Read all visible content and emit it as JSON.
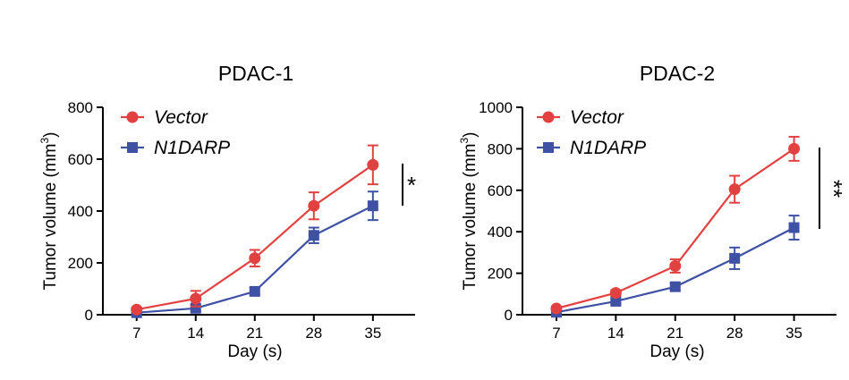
{
  "chart_data": [
    {
      "type": "line",
      "title": "PDAC-1",
      "xlabel": "Day (s)",
      "ylabel": "Tumor volume (mm",
      "ylabel_sup": "3",
      "ylabel_close": ")",
      "x": [
        7,
        14,
        21,
        28,
        35
      ],
      "xlim": [
        3,
        40
      ],
      "ylim": [
        0,
        800
      ],
      "yticks": [
        0,
        200,
        400,
        600,
        800
      ],
      "series": [
        {
          "name": "Vector",
          "color": "#e24141",
          "marker": "circle",
          "values": [
            20,
            62,
            218,
            420,
            578
          ],
          "errors": [
            8,
            30,
            32,
            52,
            75
          ]
        },
        {
          "name": "N1DARP",
          "color": "#3f51a4",
          "marker": "square",
          "values": [
            8,
            25,
            90,
            306,
            420
          ],
          "errors": [
            4,
            12,
            12,
            30,
            55
          ]
        }
      ],
      "significance": "*"
    },
    {
      "type": "line",
      "title": "PDAC-2",
      "xlabel": "Day (s)",
      "ylabel": "Tumor volume (mm",
      "ylabel_sup": "3",
      "ylabel_close": ")",
      "x": [
        7,
        14,
        21,
        28,
        35
      ],
      "xlim": [
        3,
        40
      ],
      "ylim": [
        0,
        1000
      ],
      "yticks": [
        0,
        200,
        400,
        600,
        800,
        1000
      ],
      "series": [
        {
          "name": "Vector",
          "color": "#e24141",
          "marker": "circle",
          "values": [
            30,
            105,
            235,
            605,
            800
          ],
          "errors": [
            10,
            14,
            32,
            65,
            58
          ]
        },
        {
          "name": "N1DARP",
          "color": "#3f51a4",
          "marker": "square",
          "values": [
            12,
            65,
            135,
            272,
            420
          ],
          "errors": [
            5,
            10,
            16,
            52,
            58
          ]
        }
      ],
      "significance": "**"
    }
  ]
}
